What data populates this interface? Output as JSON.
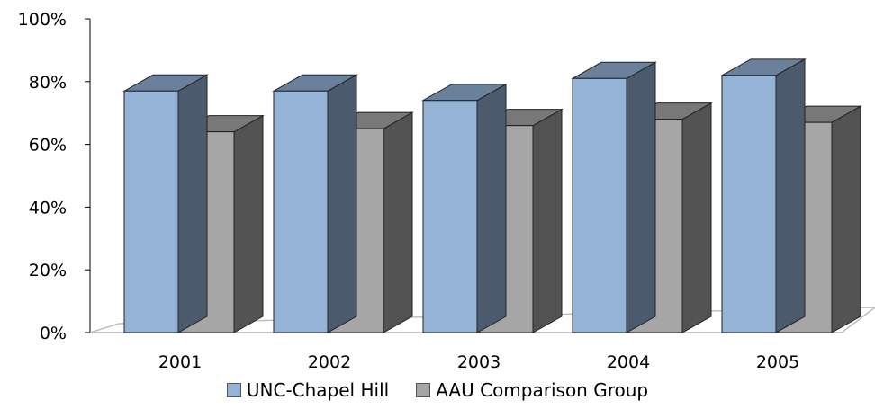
{
  "chart_data": {
    "type": "bar",
    "categories": [
      "2001",
      "2002",
      "2003",
      "2004",
      "2005"
    ],
    "series": [
      {
        "name": "UNC-Chapel Hill",
        "values": [
          77,
          77,
          74,
          81,
          82
        ],
        "color": "#95b3d7"
      },
      {
        "name": "AAU Comparison Group",
        "values": [
          64,
          65,
          66,
          68,
          67
        ],
        "color": "#a6a6a6"
      }
    ],
    "y_ticks": [
      "0%",
      "20%",
      "40%",
      "60%",
      "80%",
      "100%"
    ],
    "ylim": [
      0,
      100
    ],
    "legend_position": "bottom",
    "grid": false,
    "style": "3d-column"
  }
}
